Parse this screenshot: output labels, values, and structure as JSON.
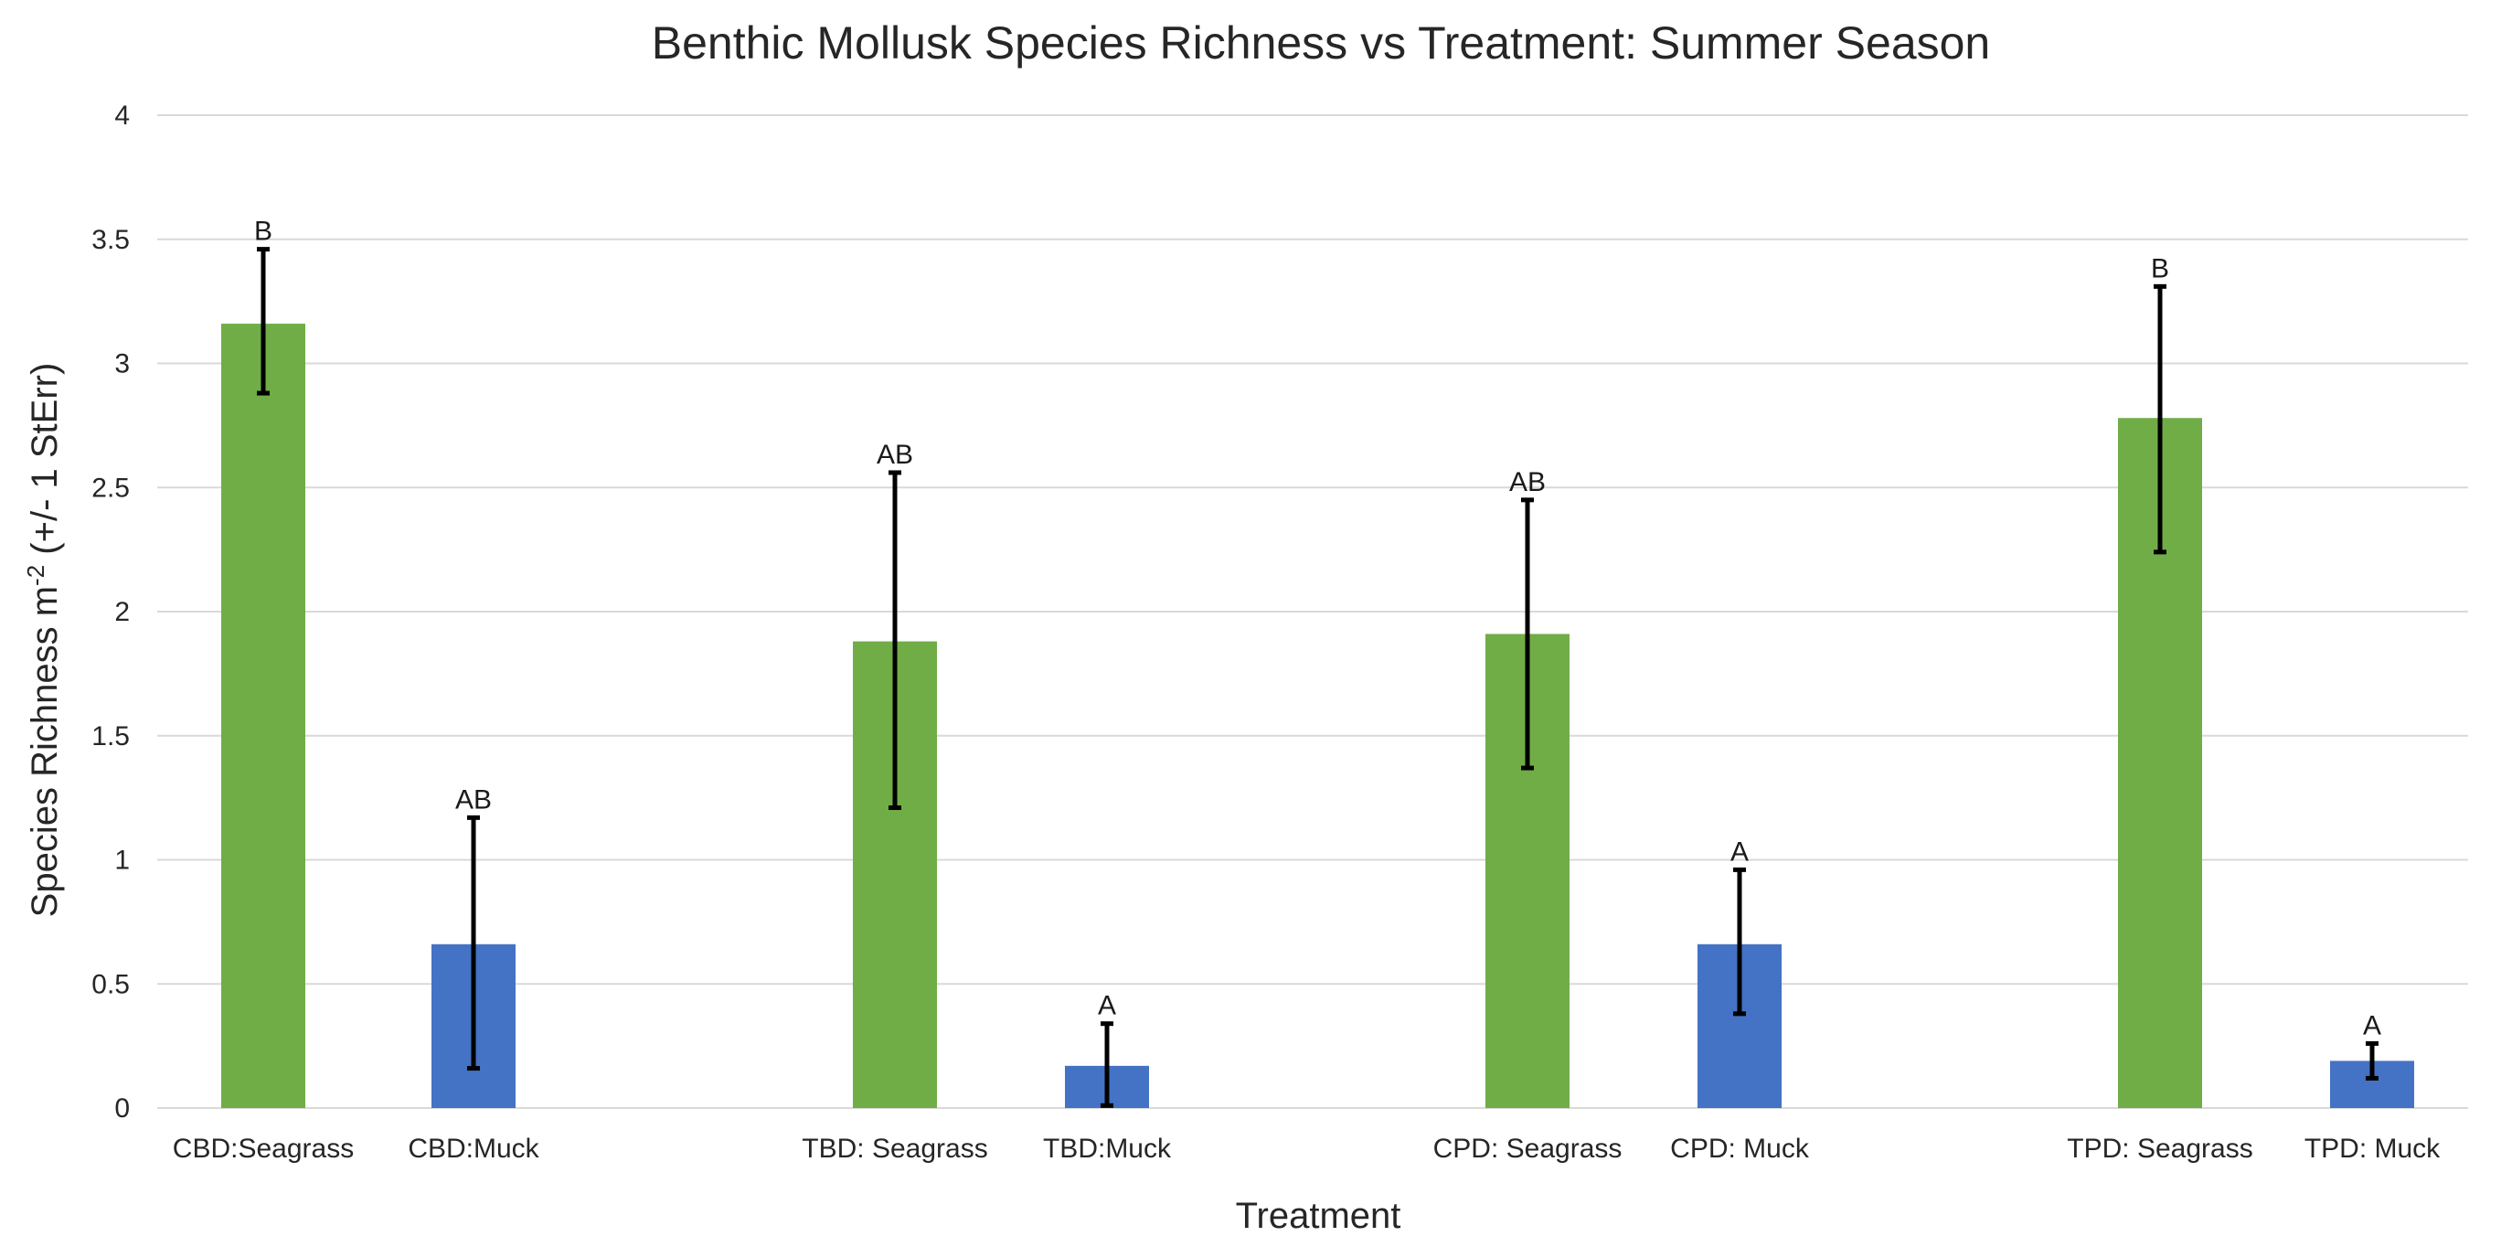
{
  "chart_data": {
    "type": "bar",
    "title": "Benthic Mollusk Species Richness vs Treatment: Summer Season",
    "xlabel": "Treatment",
    "ylabel_main": "Species Richness m",
    "ylabel_sup": "-2",
    "ylabel_tail": " (+/- 1 StErr)",
    "ylim": [
      0,
      4
    ],
    "ytick_step": 0.5,
    "yticks": [
      "0",
      "0.5",
      "1",
      "1.5",
      "2",
      "2.5",
      "3",
      "3.5",
      "4"
    ],
    "grid": true,
    "colors": {
      "seagrass": "#70ad47",
      "muck": "#4472c4",
      "grid": "#d9d9d9",
      "error": "#000000"
    },
    "bars": [
      {
        "category": "CBD:Seagrass",
        "habitat": "seagrass",
        "value": 3.16,
        "err_low": 2.88,
        "err_high": 3.46,
        "label": "B"
      },
      {
        "category": "CBD:Muck",
        "habitat": "muck",
        "value": 0.66,
        "err_low": 0.16,
        "err_high": 1.17,
        "label": "AB"
      },
      {
        "category": "TBD: Seagrass",
        "habitat": "seagrass",
        "value": 1.88,
        "err_low": 1.21,
        "err_high": 2.56,
        "label": "AB"
      },
      {
        "category": "TBD:Muck",
        "habitat": "muck",
        "value": 0.17,
        "err_low": 0.01,
        "err_high": 0.34,
        "label": "A"
      },
      {
        "category": "CPD: Seagrass",
        "habitat": "seagrass",
        "value": 1.91,
        "err_low": 1.37,
        "err_high": 2.45,
        "label": "AB"
      },
      {
        "category": "CPD: Muck",
        "habitat": "muck",
        "value": 0.66,
        "err_low": 0.38,
        "err_high": 0.96,
        "label": "A"
      },
      {
        "category": "TPD: Seagrass",
        "habitat": "seagrass",
        "value": 2.78,
        "err_low": 2.24,
        "err_high": 3.31,
        "label": "B"
      },
      {
        "category": "TPD: Muck",
        "habitat": "muck",
        "value": 0.19,
        "err_low": 0.12,
        "err_high": 0.26,
        "label": "A"
      }
    ]
  }
}
